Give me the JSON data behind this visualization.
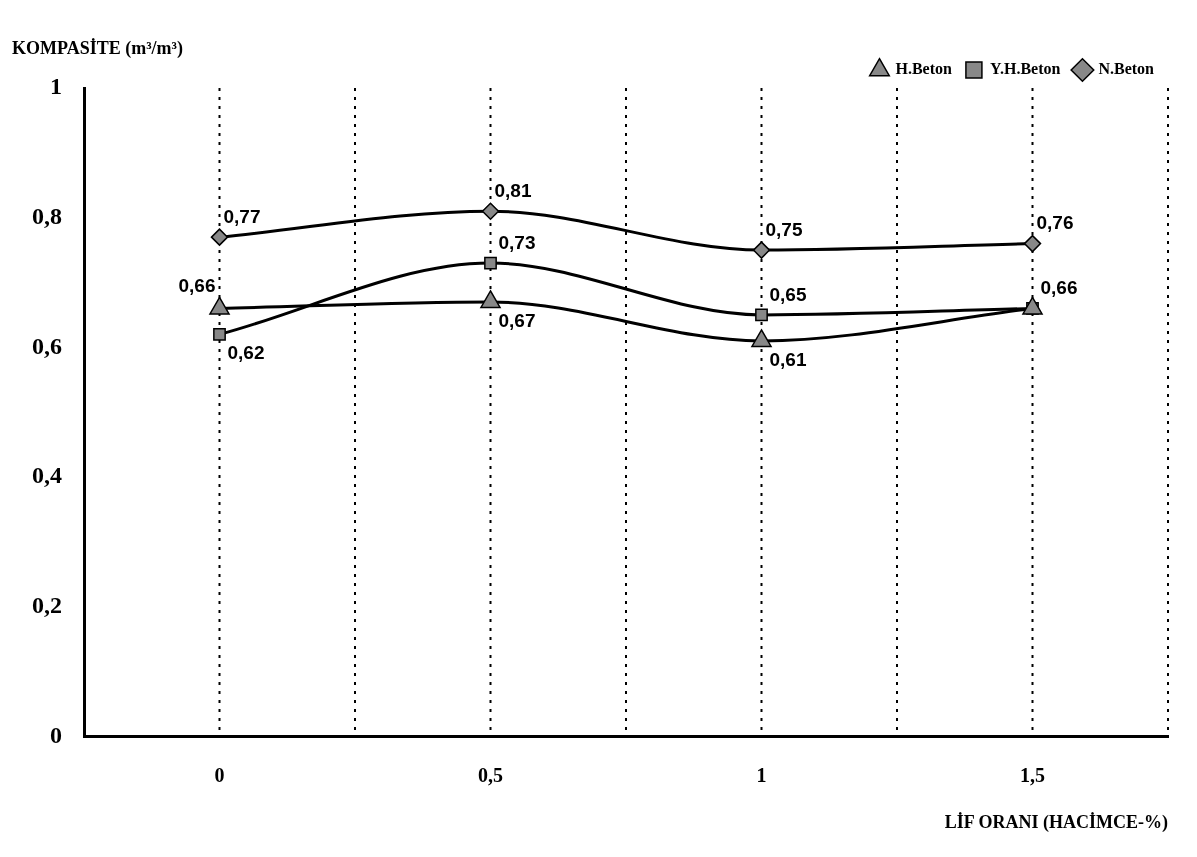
{
  "chart_data": {
    "type": "line",
    "ylabel": "KOMPASİTE (m³/m³)",
    "xlabel": "LİF ORANI (HACİMCE-%)",
    "categories": [
      "0",
      "0,5",
      "1",
      "1,5"
    ],
    "series": [
      {
        "name": "N.Beton",
        "color": "#000000",
        "marker": "diamond",
        "values": [
          0.77,
          0.81,
          0.75,
          0.76
        ],
        "value_labels": [
          "0,77",
          "0,81",
          "0,75",
          "0,76"
        ]
      },
      {
        "name": "Y.H.Beton",
        "color": "#000000",
        "marker": "square",
        "values": [
          0.62,
          0.73,
          0.65,
          0.66
        ],
        "value_labels": [
          "0,62",
          "0,73",
          "0,65",
          "0,66"
        ]
      },
      {
        "name": "H.Beton",
        "color": "#000000",
        "marker": "triangle",
        "values": [
          0.66,
          0.67,
          0.61,
          0.66
        ],
        "value_labels": [
          "0,66",
          "0,67",
          "0,61",
          null
        ]
      }
    ],
    "ylim": [
      0,
      1
    ],
    "yticks": [
      0,
      {
        "value": 0.2,
        "label": "0,2"
      },
      {
        "value": 0.4,
        "label": "0,4"
      },
      {
        "value": 0.6,
        "label": "0,6"
      },
      {
        "value": 0.8,
        "label": "0,8"
      },
      1
    ],
    "grid": "x",
    "legend": "top right",
    "line_style": "solid"
  }
}
